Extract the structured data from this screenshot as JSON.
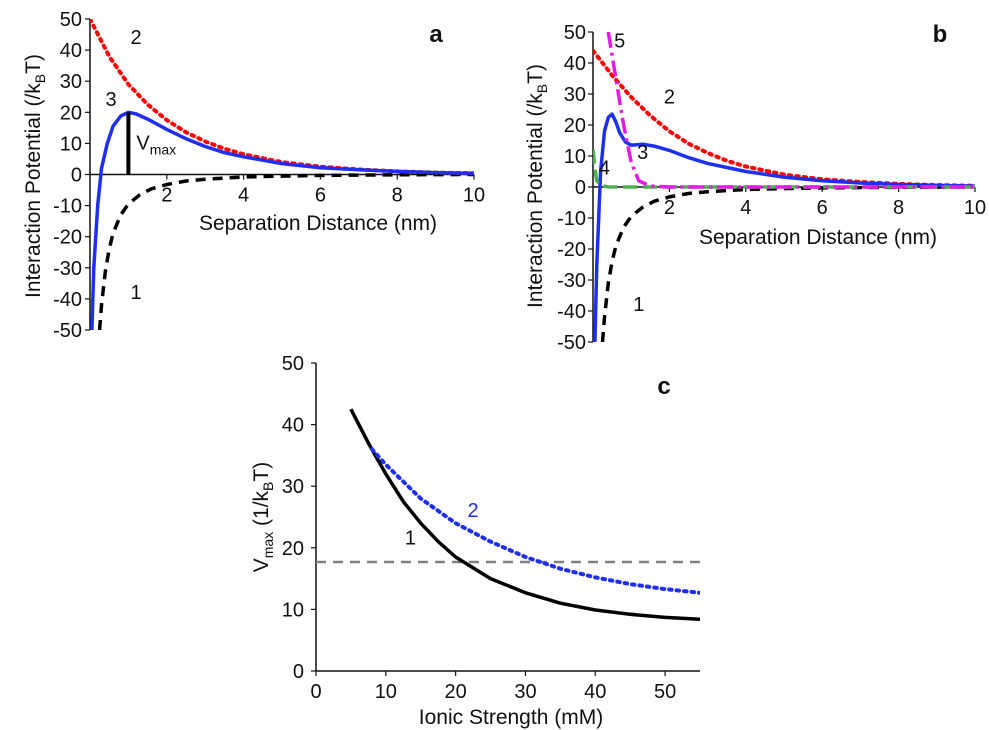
{
  "chart_data": [
    {
      "panel": "a",
      "type": "line",
      "xlabel": "Separation Distance (nm)",
      "ylabel": "Interaction Potential (/k_BT)",
      "ylabel_parts": {
        "main": "Interaction Potential (/k",
        "sub": "B",
        "tail": "T)"
      },
      "xlim": [
        0,
        10
      ],
      "ylim": [
        -50,
        50
      ],
      "xticks": [
        "2",
        "4",
        "6",
        "8",
        "10"
      ],
      "yticks": [
        "50",
        "40",
        "30",
        "20",
        "10",
        "0",
        "-10",
        "-20",
        "-30",
        "-40",
        "-50"
      ],
      "annotation": {
        "main": "V",
        "sub": "max",
        "x": 1.0,
        "y_from": 0,
        "y_to": 20
      },
      "series": [
        {
          "label": "1",
          "color": "#000000",
          "dash": "dashed",
          "points": [
            [
              0.25,
              -50
            ],
            [
              0.3,
              -42
            ],
            [
              0.4,
              -31
            ],
            [
              0.5,
              -24
            ],
            [
              0.6,
              -19
            ],
            [
              0.8,
              -13
            ],
            [
              1.0,
              -9.5
            ],
            [
              1.3,
              -6.5
            ],
            [
              1.6,
              -4.6
            ],
            [
              2,
              -3.2
            ],
            [
              2.5,
              -2.1
            ],
            [
              3,
              -1.5
            ],
            [
              4,
              -0.8
            ],
            [
              5,
              -0.5
            ],
            [
              6,
              -0.3
            ],
            [
              8,
              -0.1
            ],
            [
              10,
              0
            ]
          ]
        },
        {
          "label": "2",
          "color": "#ff0000",
          "dash": "dotted",
          "points": [
            [
              0,
              50
            ],
            [
              0.5,
              38
            ],
            [
              1,
              29
            ],
            [
              1.5,
              22.5
            ],
            [
              2,
              17.5
            ],
            [
              2.5,
              13.6
            ],
            [
              3,
              10.6
            ],
            [
              3.5,
              8.3
            ],
            [
              4,
              6.5
            ],
            [
              5,
              4
            ],
            [
              6,
              2.5
            ],
            [
              7,
              1.6
            ],
            [
              8,
              1.0
            ],
            [
              9,
              0.6
            ],
            [
              10,
              0.4
            ]
          ]
        },
        {
          "label": "3",
          "color": "#1f2ff0",
          "dash": "solid",
          "points": [
            [
              0.05,
              -50
            ],
            [
              0.1,
              -30
            ],
            [
              0.2,
              -10
            ],
            [
              0.3,
              2
            ],
            [
              0.45,
              10
            ],
            [
              0.6,
              15.5
            ],
            [
              0.8,
              18.8
            ],
            [
              1.0,
              20
            ],
            [
              1.2,
              19.5
            ],
            [
              1.5,
              17.8
            ],
            [
              2,
              14.5
            ],
            [
              2.5,
              11.5
            ],
            [
              3,
              9
            ],
            [
              3.5,
              7
            ],
            [
              4,
              5.7
            ],
            [
              5,
              3.5
            ],
            [
              6,
              2.2
            ],
            [
              7,
              1.5
            ],
            [
              8,
              1.0
            ],
            [
              9,
              0.6
            ],
            [
              10,
              0.4
            ]
          ]
        }
      ]
    },
    {
      "panel": "b",
      "type": "line",
      "xlabel": "Separation Distance (nm)",
      "ylabel": "Interaction Potential (/k_BT)",
      "ylabel_parts": {
        "main": "Interaction Potential (/k",
        "sub": "B",
        "tail": "T)"
      },
      "xlim": [
        0,
        10
      ],
      "ylim": [
        -50,
        50
      ],
      "xticks": [
        "2",
        "4",
        "6",
        "8",
        "10"
      ],
      "yticks": [
        "50",
        "40",
        "30",
        "20",
        "10",
        "0",
        "-10",
        "-20",
        "-30",
        "-40",
        "-50"
      ],
      "series": [
        {
          "label": "1",
          "color": "#000000",
          "dash": "dashed",
          "points": [
            [
              0.25,
              -50
            ],
            [
              0.3,
              -42
            ],
            [
              0.4,
              -31
            ],
            [
              0.5,
              -24
            ],
            [
              0.6,
              -19
            ],
            [
              0.8,
              -13
            ],
            [
              1.0,
              -9.5
            ],
            [
              1.3,
              -6.5
            ],
            [
              1.6,
              -4.6
            ],
            [
              2,
              -3.2
            ],
            [
              2.5,
              -2.1
            ],
            [
              3,
              -1.5
            ],
            [
              4,
              -0.8
            ],
            [
              5,
              -0.5
            ],
            [
              6,
              -0.3
            ],
            [
              8,
              -0.1
            ],
            [
              10,
              0
            ]
          ]
        },
        {
          "label": "2",
          "color": "#ff0000",
          "dash": "dotted",
          "points": [
            [
              0,
              44
            ],
            [
              0.5,
              36
            ],
            [
              1,
              29
            ],
            [
              1.5,
              23
            ],
            [
              2,
              18
            ],
            [
              2.5,
              14
            ],
            [
              3,
              11
            ],
            [
              3.5,
              8.5
            ],
            [
              4,
              6.6
            ],
            [
              5,
              4
            ],
            [
              6,
              2.5
            ],
            [
              7,
              1.6
            ],
            [
              8,
              1.0
            ],
            [
              9,
              0.6
            ],
            [
              10,
              0.4
            ]
          ]
        },
        {
          "label": "3",
          "color": "#1f2ff0",
          "dash": "solid",
          "points": [
            [
              0.05,
              -50
            ],
            [
              0.1,
              -25
            ],
            [
              0.2,
              5
            ],
            [
              0.3,
              18
            ],
            [
              0.4,
              22.5
            ],
            [
              0.5,
              23.5
            ],
            [
              0.6,
              21
            ],
            [
              0.7,
              17.5
            ],
            [
              0.85,
              14.5
            ],
            [
              1.0,
              13.5
            ],
            [
              1.3,
              13.8
            ],
            [
              1.6,
              13.2
            ],
            [
              2,
              11.8
            ],
            [
              2.5,
              9.5
            ],
            [
              3,
              7.6
            ],
            [
              4,
              5
            ],
            [
              5,
              3.2
            ],
            [
              6,
              2
            ],
            [
              7,
              1.3
            ],
            [
              8,
              0.8
            ],
            [
              9,
              0.5
            ],
            [
              10,
              0.3
            ]
          ]
        },
        {
          "label": "4",
          "color": "#4caf50",
          "dash": "longdash",
          "points": [
            [
              0,
              12
            ],
            [
              0.05,
              6
            ],
            [
              0.1,
              2
            ],
            [
              0.2,
              0.5
            ],
            [
              0.4,
              0
            ],
            [
              10,
              0
            ]
          ]
        },
        {
          "label": "5",
          "color": "#e21ce0",
          "dash": "dashdot",
          "points": [
            [
              0.4,
              50
            ],
            [
              0.6,
              35
            ],
            [
              0.8,
              20
            ],
            [
              1.0,
              8
            ],
            [
              1.2,
              2
            ],
            [
              1.5,
              0.3
            ],
            [
              2,
              0
            ],
            [
              10,
              0
            ]
          ]
        }
      ]
    },
    {
      "panel": "c",
      "type": "line",
      "xlabel": "Ionic Strength (mM)",
      "ylabel": "V_max (1/k_BT)",
      "ylabel_parts": {
        "v": "V",
        "sub1": "max",
        "mid": " (1/k",
        "sub2": "B",
        "tail": "T)"
      },
      "xlim": [
        0,
        55
      ],
      "ylim": [
        0,
        50
      ],
      "xticks": [
        "0",
        "10",
        "20",
        "30",
        "40",
        "50"
      ],
      "yticks": [
        "0",
        "10",
        "20",
        "30",
        "40",
        "50"
      ],
      "reference_line": {
        "y": 17.7,
        "color": "#808080",
        "dash": "dashed"
      },
      "series": [
        {
          "label": "1",
          "color": "#000000",
          "dash": "solid",
          "points": [
            [
              5,
              42.5
            ],
            [
              7.5,
              37
            ],
            [
              10,
              32
            ],
            [
              12.5,
              27.5
            ],
            [
              15,
              24
            ],
            [
              17.5,
              21
            ],
            [
              20,
              18.5
            ],
            [
              25,
              15
            ],
            [
              30,
              12.7
            ],
            [
              35,
              11
            ],
            [
              40,
              9.9
            ],
            [
              45,
              9.2
            ],
            [
              50,
              8.7
            ],
            [
              55,
              8.4
            ]
          ]
        },
        {
          "label": "2",
          "color": "#1f2ff0",
          "dash": "dotted",
          "points": [
            [
              8,
              36
            ],
            [
              10,
              33.5
            ],
            [
              15,
              28
            ],
            [
              20,
              24
            ],
            [
              25,
              21
            ],
            [
              30,
              18.5
            ],
            [
              35,
              16.6
            ],
            [
              40,
              15.2
            ],
            [
              45,
              14.1
            ],
            [
              50,
              13.3
            ],
            [
              55,
              12.7
            ]
          ]
        }
      ]
    }
  ]
}
